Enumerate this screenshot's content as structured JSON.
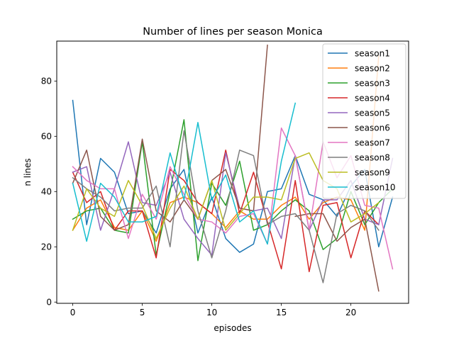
{
  "chart_data": {
    "type": "line",
    "title": "Number of lines per season Monica",
    "xlabel": "episodes",
    "ylabel": "n lines",
    "xlim": [
      -1.15,
      24.15
    ],
    "ylim": [
      -0.45,
      94.45
    ],
    "xticks": [
      0,
      5,
      10,
      15,
      20
    ],
    "yticks": [
      0,
      20,
      40,
      60,
      80
    ],
    "grid": false,
    "legend_position": "top-right",
    "series": [
      {
        "name": "season1",
        "color": "#1f77b4",
        "values": [
          73,
          28,
          52,
          47,
          32,
          33,
          25,
          41,
          48,
          25,
          38,
          23,
          18,
          21,
          40,
          41,
          53,
          39,
          37,
          31,
          42,
          48,
          20,
          38
        ]
      },
      {
        "name": "season2",
        "color": "#ff7f0e",
        "values": [
          26,
          34,
          37,
          27,
          26,
          33,
          22,
          36,
          38,
          36,
          32,
          27,
          33,
          30,
          30,
          35,
          38,
          30,
          36,
          38,
          37,
          26,
          89
        ]
      },
      {
        "name": "season3",
        "color": "#2ca02c",
        "values": [
          30,
          33,
          34,
          26,
          25,
          58,
          17,
          40,
          66,
          15,
          43,
          35,
          51,
          26,
          28,
          33,
          37,
          33,
          19,
          23,
          40,
          28,
          36,
          41
        ]
      },
      {
        "name": "season4",
        "color": "#d62728",
        "values": [
          47,
          36,
          40,
          26,
          33,
          33,
          16,
          48,
          44,
          36,
          32,
          55,
          32,
          47,
          29,
          12,
          44,
          11,
          35,
          36,
          16,
          33,
          28
        ]
      },
      {
        "name": "season5",
        "color": "#9467bd",
        "values": [
          47,
          49,
          26,
          41,
          58,
          36,
          35,
          47,
          30,
          23,
          17,
          54,
          34,
          33,
          34,
          23,
          53,
          26,
          37,
          37,
          44,
          30,
          28,
          52
        ]
      },
      {
        "name": "season6",
        "color": "#8c564b",
        "values": [
          43,
          55,
          31,
          26,
          28,
          59,
          33,
          29,
          37,
          30,
          44,
          48,
          34,
          33,
          93,
          null,
          31,
          32,
          32,
          22,
          27,
          30,
          4
        ]
      },
      {
        "name": "season7",
        "color": "#e377c2",
        "values": [
          49,
          44,
          41,
          41,
          23,
          39,
          30,
          49,
          39,
          30,
          29,
          25,
          31,
          32,
          21,
          63,
          53,
          26,
          58,
          45,
          53,
          35,
          34,
          12
        ]
      },
      {
        "name": "season8",
        "color": "#7f7f7f",
        "values": [
          45,
          41,
          38,
          33,
          34,
          34,
          42,
          20,
          62,
          33,
          16,
          33,
          55,
          53,
          28,
          31,
          32,
          26,
          7,
          32,
          35,
          33,
          26
        ]
      },
      {
        "name": "season9",
        "color": "#bcbd22",
        "values": [
          26,
          41,
          34,
          31,
          44,
          35,
          23,
          34,
          42,
          30,
          44,
          26,
          32,
          38,
          38,
          37,
          52,
          54,
          44,
          41,
          29,
          32,
          36
        ]
      },
      {
        "name": "season10",
        "color": "#17becf",
        "values": [
          43,
          22,
          43,
          38,
          29,
          29,
          31,
          54,
          37,
          65,
          37,
          46,
          29,
          33,
          21,
          51,
          72
        ]
      }
    ]
  }
}
